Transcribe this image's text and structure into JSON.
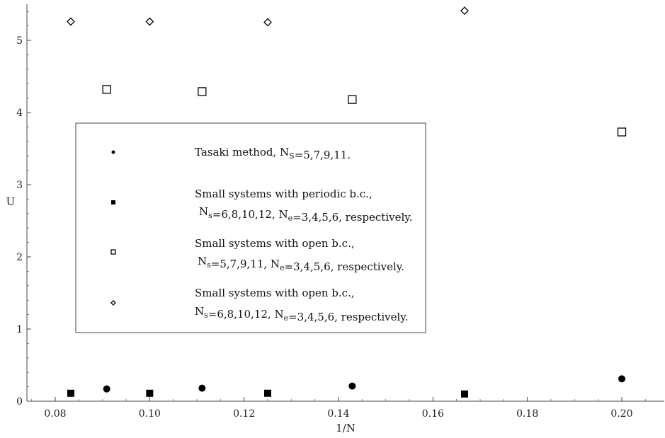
{
  "chart_data": {
    "type": "scatter",
    "title": "",
    "xlabel": "1/N",
    "ylabel": "U",
    "xlim": [
      0.074,
      0.209
    ],
    "ylim": [
      0,
      5.5
    ],
    "grid": false,
    "legend_position": "center-left",
    "x_ticks": [
      0.08,
      0.1,
      0.12,
      0.14,
      0.16,
      0.18,
      0.2
    ],
    "x_tick_labels": [
      "0.08",
      "0.10",
      "0.12",
      "0.14",
      "0.16",
      "0.18",
      "0.20"
    ],
    "y_ticks": [
      0,
      1,
      2,
      3,
      4,
      5
    ],
    "y_tick_labels": [
      "0",
      "1",
      "2",
      "3",
      "4",
      "5"
    ],
    "series": [
      {
        "marker": "filled-circle",
        "legend": [
          {
            "t": "Tasaki method, N"
          },
          {
            "t": "S",
            "sub": true
          },
          {
            "t": "=5,7,9,11."
          }
        ],
        "points": [
          [
            0.0909,
            0.17
          ],
          [
            0.1111,
            0.18
          ],
          [
            0.1429,
            0.21
          ],
          [
            0.2,
            0.31
          ]
        ]
      },
      {
        "marker": "filled-square",
        "legend": [
          {
            "t": "Small systems with periodic b.c.,"
          }
        ],
        "legend2": [
          {
            "t": "N"
          },
          {
            "t": "s",
            "sub": true
          },
          {
            "t": "=6,8,10,12, N"
          },
          {
            "t": "e",
            "sub": true
          },
          {
            "t": "=3,4,5,6, respectively."
          }
        ],
        "points": [
          [
            0.0833,
            0.11
          ],
          [
            0.1,
            0.11
          ],
          [
            0.125,
            0.11
          ],
          [
            0.1667,
            0.1
          ]
        ]
      },
      {
        "marker": "open-square",
        "legend": [
          {
            "t": "Small systems with open b.c.,"
          }
        ],
        "legend2": [
          {
            "t": "N"
          },
          {
            "t": "s",
            "sub": true
          },
          {
            "t": "=5,7,9,11, N"
          },
          {
            "t": "e",
            "sub": true
          },
          {
            "t": "=3,4,5,6, respectively."
          }
        ],
        "points": [
          [
            0.0909,
            4.32
          ],
          [
            0.1111,
            4.29
          ],
          [
            0.1429,
            4.18
          ],
          [
            0.2,
            3.73
          ]
        ]
      },
      {
        "marker": "open-diamond",
        "legend": [
          {
            "t": "Small systems with open b.c.,"
          }
        ],
        "legend2": [
          {
            "t": "N"
          },
          {
            "t": "s",
            "sub": true
          },
          {
            "t": "=6,8,10,12, N"
          },
          {
            "t": "e",
            "sub": true
          },
          {
            "t": "=3,4,5,6, respectively."
          }
        ],
        "points": [
          [
            0.0833,
            5.26
          ],
          [
            0.1,
            5.26
          ],
          [
            0.125,
            5.25
          ],
          [
            0.1667,
            5.41
          ]
        ]
      }
    ]
  }
}
